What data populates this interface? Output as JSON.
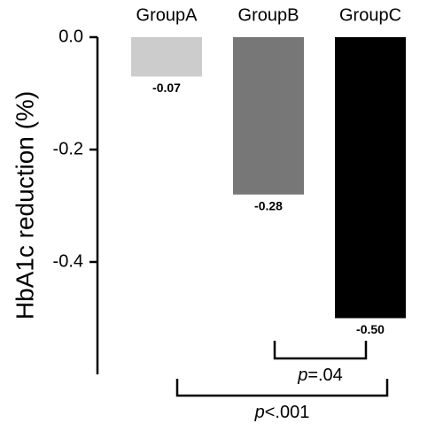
{
  "chart_data": {
    "type": "bar",
    "y_label": "HbA1c reduction (%)",
    "categories": [
      "GroupA",
      "GroupB",
      "GroupC"
    ],
    "values": [
      -0.07,
      -0.28,
      -0.5
    ],
    "value_labels": [
      "-0.07",
      "-0.28",
      "-0.50"
    ],
    "colors": [
      "#cccccc",
      "#777777",
      "#000000"
    ],
    "ylim": [
      -0.6,
      0
    ],
    "yticks": [
      {
        "value": 0,
        "label": "0.0"
      },
      -0.2,
      -0.4
    ],
    "annotations": [
      "p=.04",
      "p<.001"
    ]
  }
}
